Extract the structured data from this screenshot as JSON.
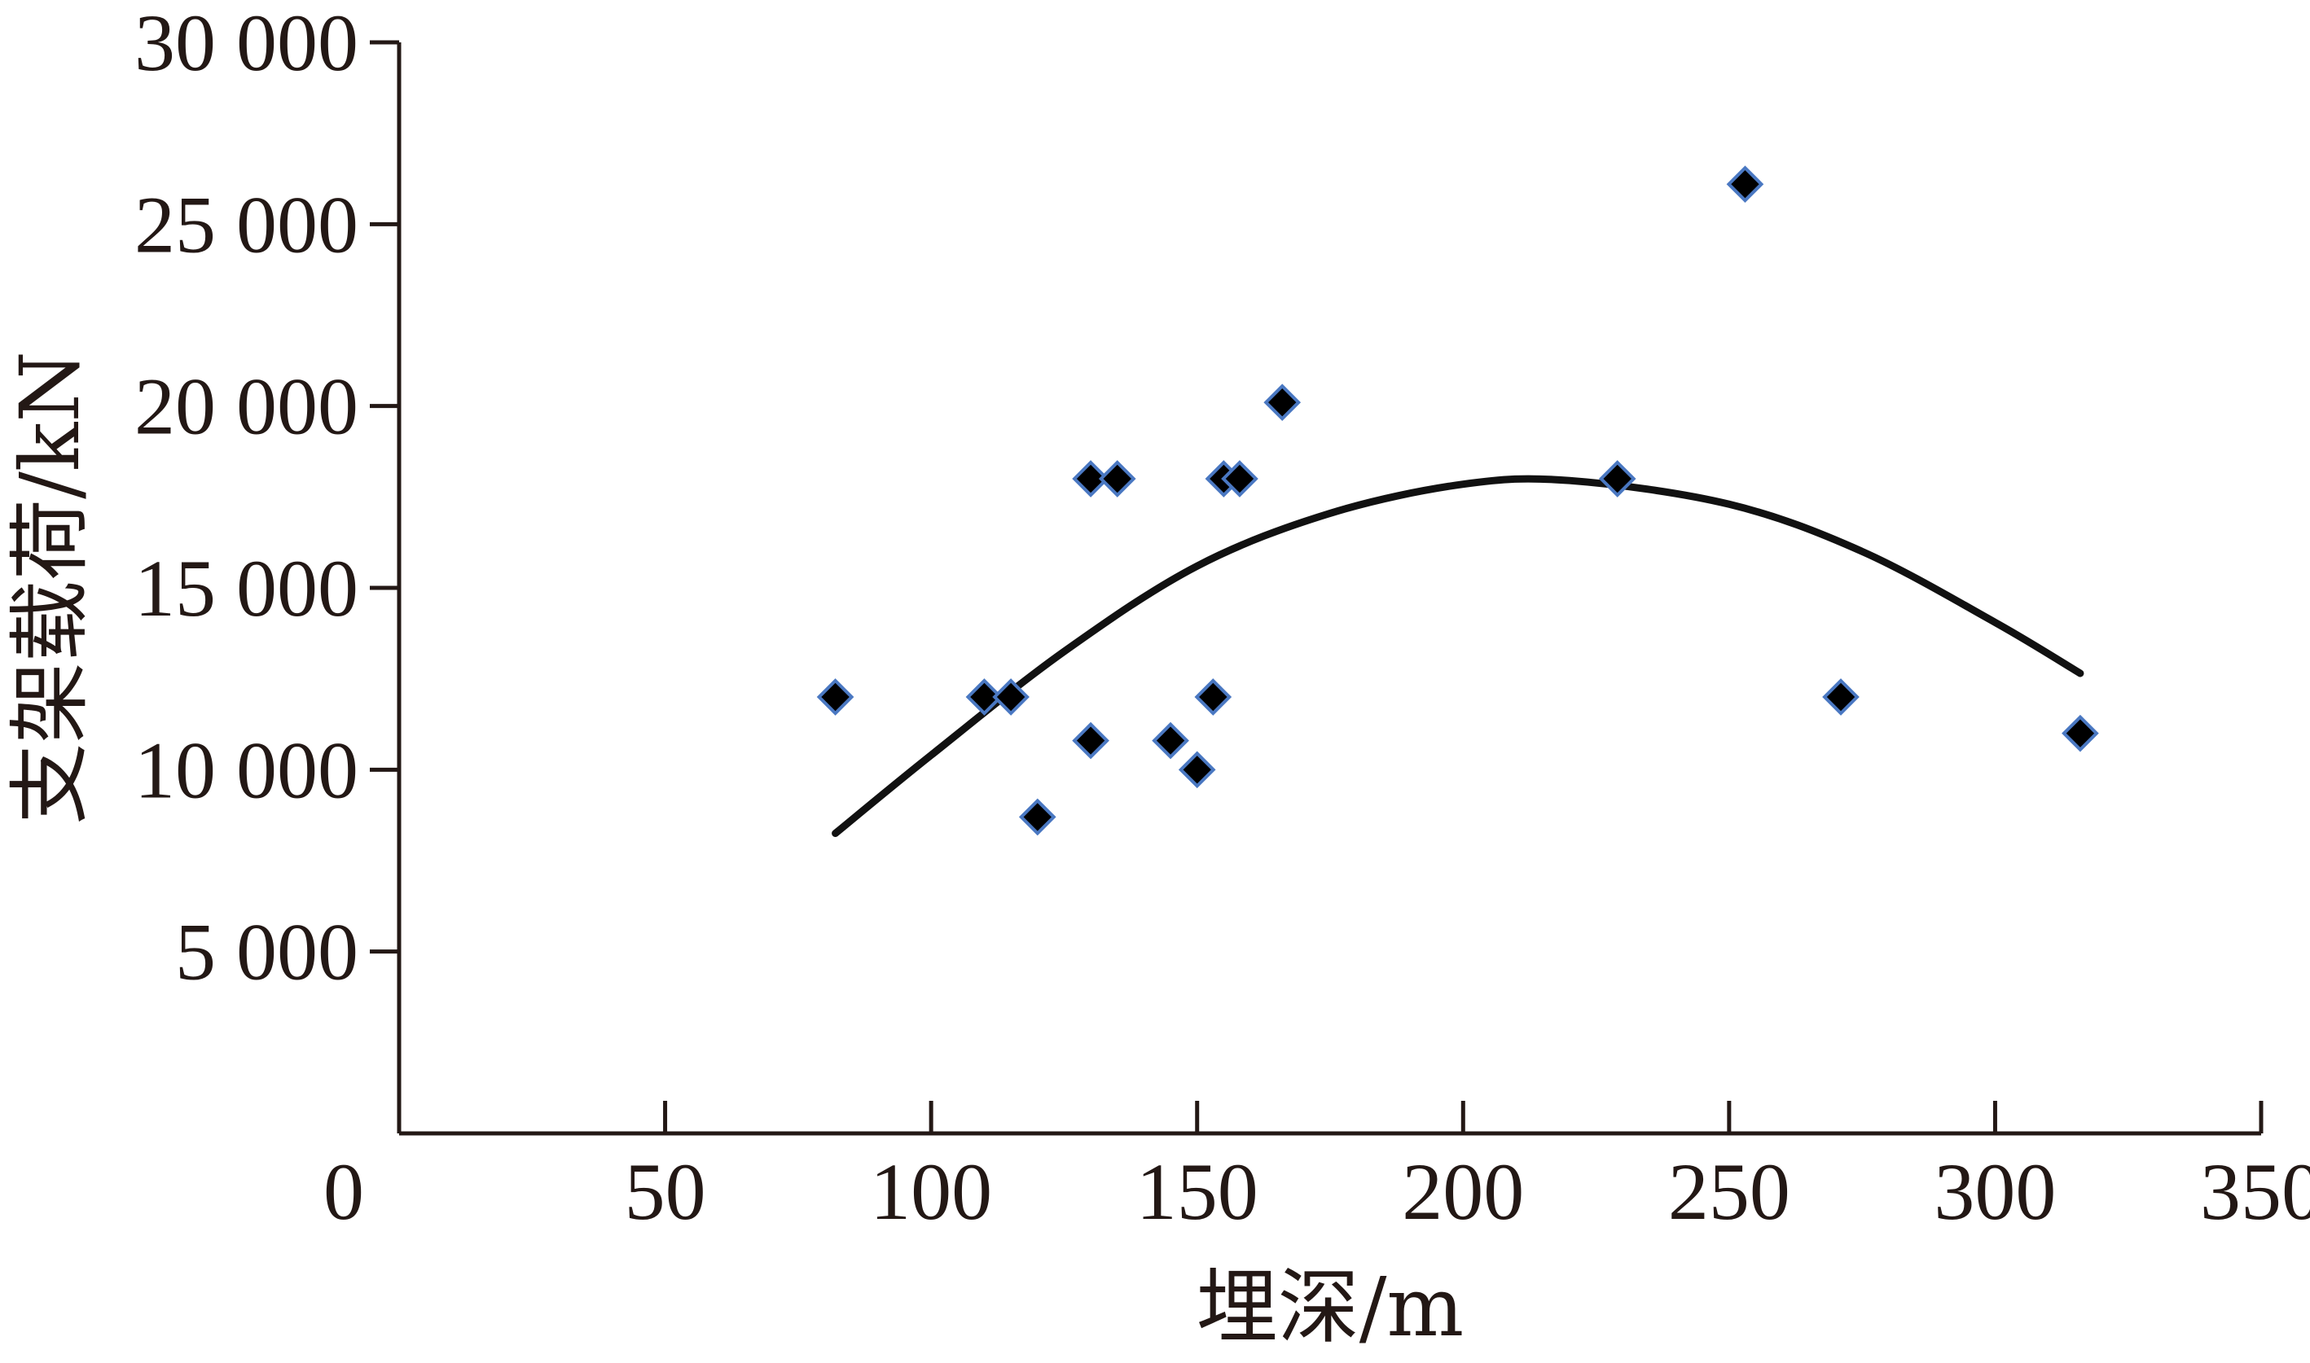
{
  "chart_data": {
    "type": "scatter",
    "xlabel": "埋深/m",
    "ylabel": "支架载荷/kN",
    "xlim": [
      0,
      350
    ],
    "ylim": [
      0,
      30000
    ],
    "x_ticks": [
      0,
      50,
      100,
      150,
      200,
      250,
      300,
      350
    ],
    "x_tick_labels": [
      "0",
      "50",
      "100",
      "150",
      "200",
      "250",
      "300",
      "350"
    ],
    "y_ticks": [
      5000,
      10000,
      15000,
      20000,
      25000,
      30000
    ],
    "y_tick_labels": [
      "5 000",
      "10 000",
      "15 000",
      "20 000",
      "25 000",
      "30 000"
    ],
    "grid": false,
    "marker_fill": "#000000",
    "marker_edge": "#4a78c2",
    "curve_color": "#111111",
    "series": [
      {
        "kind": "points",
        "marker": "diamond",
        "points": [
          [
            82,
            12000
          ],
          [
            110,
            12000
          ],
          [
            115,
            12000
          ],
          [
            120,
            8700
          ],
          [
            130,
            18000
          ],
          [
            130,
            10800
          ],
          [
            135,
            18000
          ],
          [
            145,
            10800
          ],
          [
            150,
            10000
          ],
          [
            153,
            12000
          ],
          [
            155,
            18000
          ],
          [
            158,
            18000
          ],
          [
            166,
            20100
          ],
          [
            229,
            18000
          ],
          [
            253,
            26100
          ],
          [
            271,
            12000
          ],
          [
            316,
            11000
          ]
        ]
      },
      {
        "kind": "trend",
        "fit": "quadratic",
        "x_range": [
          82,
          316
        ],
        "points": [
          [
            82,
            8250
          ],
          [
            100,
            10400
          ],
          [
            125,
            13250
          ],
          [
            150,
            15600
          ],
          [
            175,
            17050
          ],
          [
            200,
            17850
          ],
          [
            220,
            17950
          ],
          [
            250,
            17300
          ],
          [
            275,
            16000
          ],
          [
            300,
            14050
          ],
          [
            316,
            12650
          ]
        ]
      }
    ]
  }
}
